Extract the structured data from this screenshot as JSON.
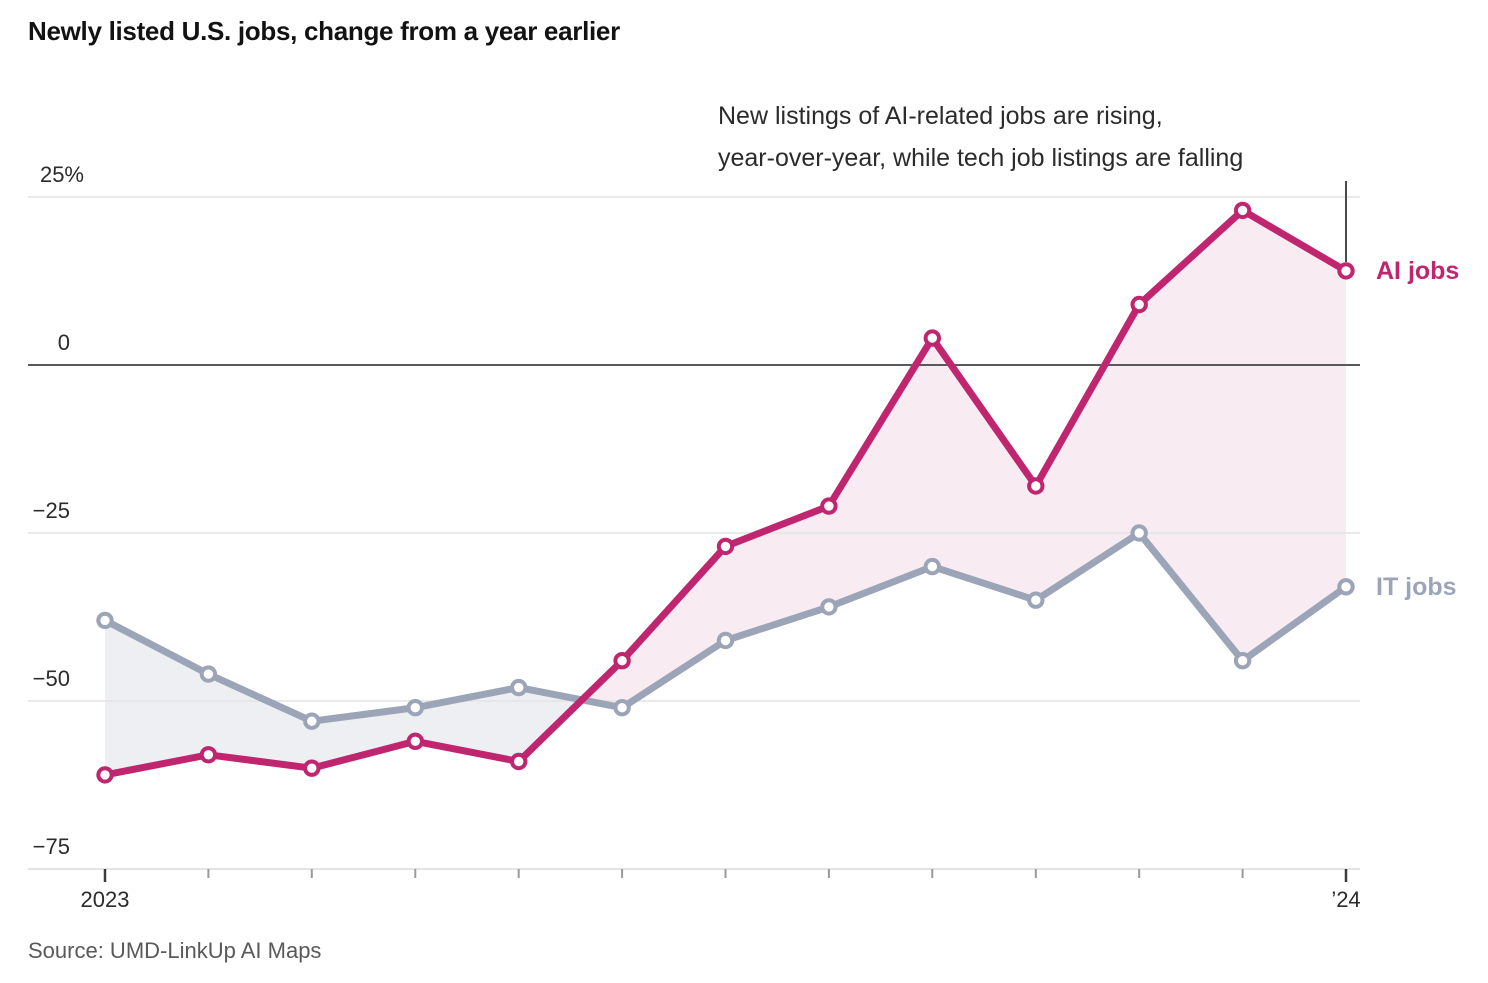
{
  "title": "Newly listed U.S. jobs, change from a year earlier",
  "annotation": {
    "line1": "New listings of AI-related jobs are rising,",
    "line2": "year-over-year, while tech job listings are falling"
  },
  "source": "Source: UMD-LinkUp AI Maps",
  "colors": {
    "zero_line": "#58595b",
    "gridline": "#e4e4e4",
    "axis_line": "#dcdcdc",
    "tick": "#9a9a9a",
    "end_tick": "#3c3c3c",
    "connector_line": "#4a4a4a",
    "ai_accent": "#c02670",
    "it_accent": "#9ca5b8"
  },
  "chart_data": {
    "type": "line",
    "title": "Newly listed U.S. jobs, change from a year earlier",
    "num_points": 13,
    "x_range_note": "monthly points from 2023 to '24",
    "x_tick_labels": [
      "2023",
      "’24"
    ],
    "x_tick_label_positions": [
      0,
      12
    ],
    "y_ticks": [
      {
        "label": "25%",
        "value": 25
      },
      {
        "label": "0",
        "value": 0
      },
      {
        "label": "−25",
        "value": -25
      },
      {
        "label": "−50",
        "value": -50
      },
      {
        "label": "−75",
        "value": -75
      }
    ],
    "ylim": [
      -75,
      25
    ],
    "grid": "horizontal",
    "zero_line": true,
    "fill_between_series": true,
    "legend_position": "right-of-last-point",
    "series": [
      {
        "name": "AI jobs",
        "color": "#c02670",
        "fill_color": "#f8ecf2",
        "values": [
          -61,
          -58,
          -60,
          -56,
          -59,
          -44,
          -27,
          -21,
          4,
          -18,
          9,
          23,
          14
        ]
      },
      {
        "name": "IT jobs",
        "color": "#9ca5b8",
        "fill_color": "#edeff3",
        "values": [
          -38,
          -46,
          -53,
          -51,
          -48,
          -51,
          -41,
          -36,
          -30,
          -35,
          -25,
          -44,
          -33
        ]
      }
    ]
  }
}
